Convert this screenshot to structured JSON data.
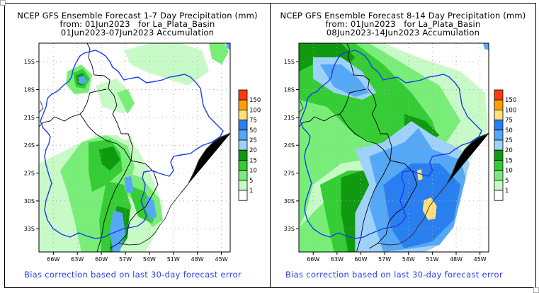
{
  "panels": [
    {
      "id": "week1",
      "title_line1": "NCEP GFS Ensemble Forecast 1-7 Day Precipitation (mm)",
      "title_line2": "from: 01Jun2023   for La_Plata_Basin",
      "title_line3": "01Jun2023-07Jun2023 Accumulation",
      "footer": "Bias correction based on last 30-day forecast error"
    },
    {
      "id": "week2",
      "title_line1": "NCEP GFS Ensemble Forecast 8-14 Day Precipitation (mm)",
      "title_line2": "from: 01Jun2023   for La_Plata_Basin",
      "title_line3": "08Jun2023-14Jun2023 Accumulation",
      "footer": "Bias correction based on last 30-day forecast error"
    }
  ],
  "axes": {
    "lat_ticks": [
      "15S",
      "18S",
      "21S",
      "24S",
      "27S",
      "30S",
      "33S"
    ],
    "lon_ticks": [
      "66W",
      "63W",
      "60W",
      "57W",
      "54W",
      "51W",
      "48W",
      "45W"
    ]
  },
  "legend": {
    "labels": [
      "150",
      "100",
      "75",
      "50",
      "25",
      "20",
      "15",
      "10",
      "5",
      "1"
    ],
    "colors": [
      "#ff3a10",
      "#ffa000",
      "#ffe07a",
      "#2a7ff0",
      "#55a8f5",
      "#9fd2fa",
      "#109a10",
      "#35cc35",
      "#78ee78",
      "#c8fac8",
      "#ffffff"
    ]
  },
  "colors": {
    "basin_outline": "#1a3cf0",
    "country_border": "#000000",
    "coast": "#555555",
    "footer_text": "#2a3ce8"
  }
}
